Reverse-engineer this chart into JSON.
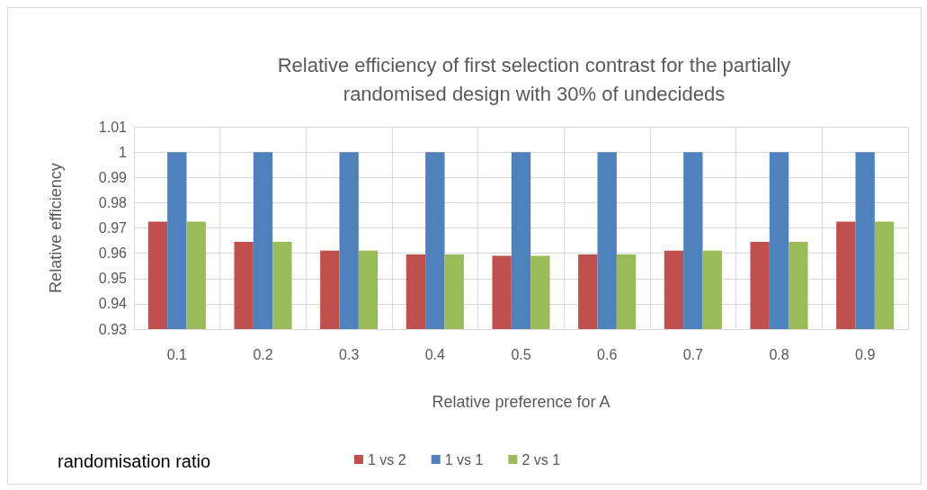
{
  "chart_data": {
    "type": "bar",
    "title": "Relative efficiency of first selection contrast for the partially\nrandomised design with 30% of undecideds",
    "xlabel": "Relative preference for A",
    "ylabel": "Relative efficiency",
    "legend_title": "randomisation ratio",
    "categories": [
      "0.1",
      "0.2",
      "0.3",
      "0.4",
      "0.5",
      "0.6",
      "0.7",
      "0.8",
      "0.9"
    ],
    "series": [
      {
        "name": "1 vs 2",
        "color": "#c0504d",
        "values": [
          0.9725,
          0.9645,
          0.961,
          0.9595,
          0.959,
          0.9595,
          0.961,
          0.9645,
          0.9725
        ]
      },
      {
        "name": "1 vs 1",
        "color": "#4f81bd",
        "values": [
          1,
          1,
          1,
          1,
          1,
          1,
          1,
          1,
          1
        ]
      },
      {
        "name": "2 vs 1",
        "color": "#9bbb59",
        "values": [
          0.9725,
          0.9645,
          0.961,
          0.9595,
          0.959,
          0.9595,
          0.961,
          0.9645,
          0.9725
        ]
      }
    ],
    "ylim": [
      0.93,
      1.01
    ],
    "yticks": [
      0.93,
      0.94,
      0.95,
      0.96,
      0.97,
      0.98,
      0.99,
      1,
      1.01
    ],
    "grid": true,
    "legend": "bottom"
  }
}
